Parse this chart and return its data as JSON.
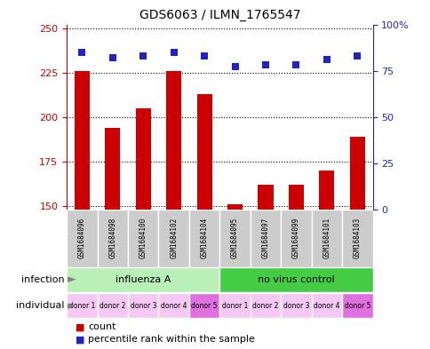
{
  "title": "GDS6063 / ILMN_1765547",
  "samples": [
    "GSM1684096",
    "GSM1684098",
    "GSM1684100",
    "GSM1684102",
    "GSM1684104",
    "GSM1684095",
    "GSM1684097",
    "GSM1684099",
    "GSM1684101",
    "GSM1684103"
  ],
  "counts": [
    226,
    194,
    205,
    226,
    213,
    151,
    162,
    162,
    170,
    189
  ],
  "percentiles": [
    85,
    82,
    83,
    85,
    83,
    77,
    78,
    78,
    81,
    83
  ],
  "ylim_left": [
    148,
    252
  ],
  "ylim_right": [
    0,
    100
  ],
  "yticks_left": [
    150,
    175,
    200,
    225,
    250
  ],
  "yticks_right": [
    0,
    25,
    50,
    75,
    100
  ],
  "ytick_right_labels": [
    "0",
    "25",
    "50",
    "75",
    "100%"
  ],
  "infection_groups": [
    {
      "label": "influenza A",
      "start": 0,
      "end": 5,
      "color": "#b8f0b8"
    },
    {
      "label": "no virus control",
      "start": 5,
      "end": 10,
      "color": "#44cc44"
    }
  ],
  "individuals": [
    "donor 1",
    "donor 2",
    "donor 3",
    "donor 4",
    "donor 5",
    "donor 1",
    "donor 2",
    "donor 3",
    "donor 4",
    "donor 5"
  ],
  "individual_colors": [
    "#f5c8f5",
    "#f5c8f5",
    "#f5c8f5",
    "#f5c8f5",
    "#e070e0",
    "#f5c8f5",
    "#f5c8f5",
    "#f5c8f5",
    "#f5c8f5",
    "#e070e0"
  ],
  "bar_color": "#cc0000",
  "dot_color": "#2222cc",
  "bar_width": 0.5,
  "dot_size": 30,
  "sample_box_color": "#cccccc",
  "legend_count_color": "#cc0000",
  "legend_dot_color": "#2222cc",
  "grid_color": "black",
  "tick_color_left": "#cc0000",
  "tick_color_right": "#2222cc",
  "infection_label": "infection",
  "individual_label": "individual"
}
